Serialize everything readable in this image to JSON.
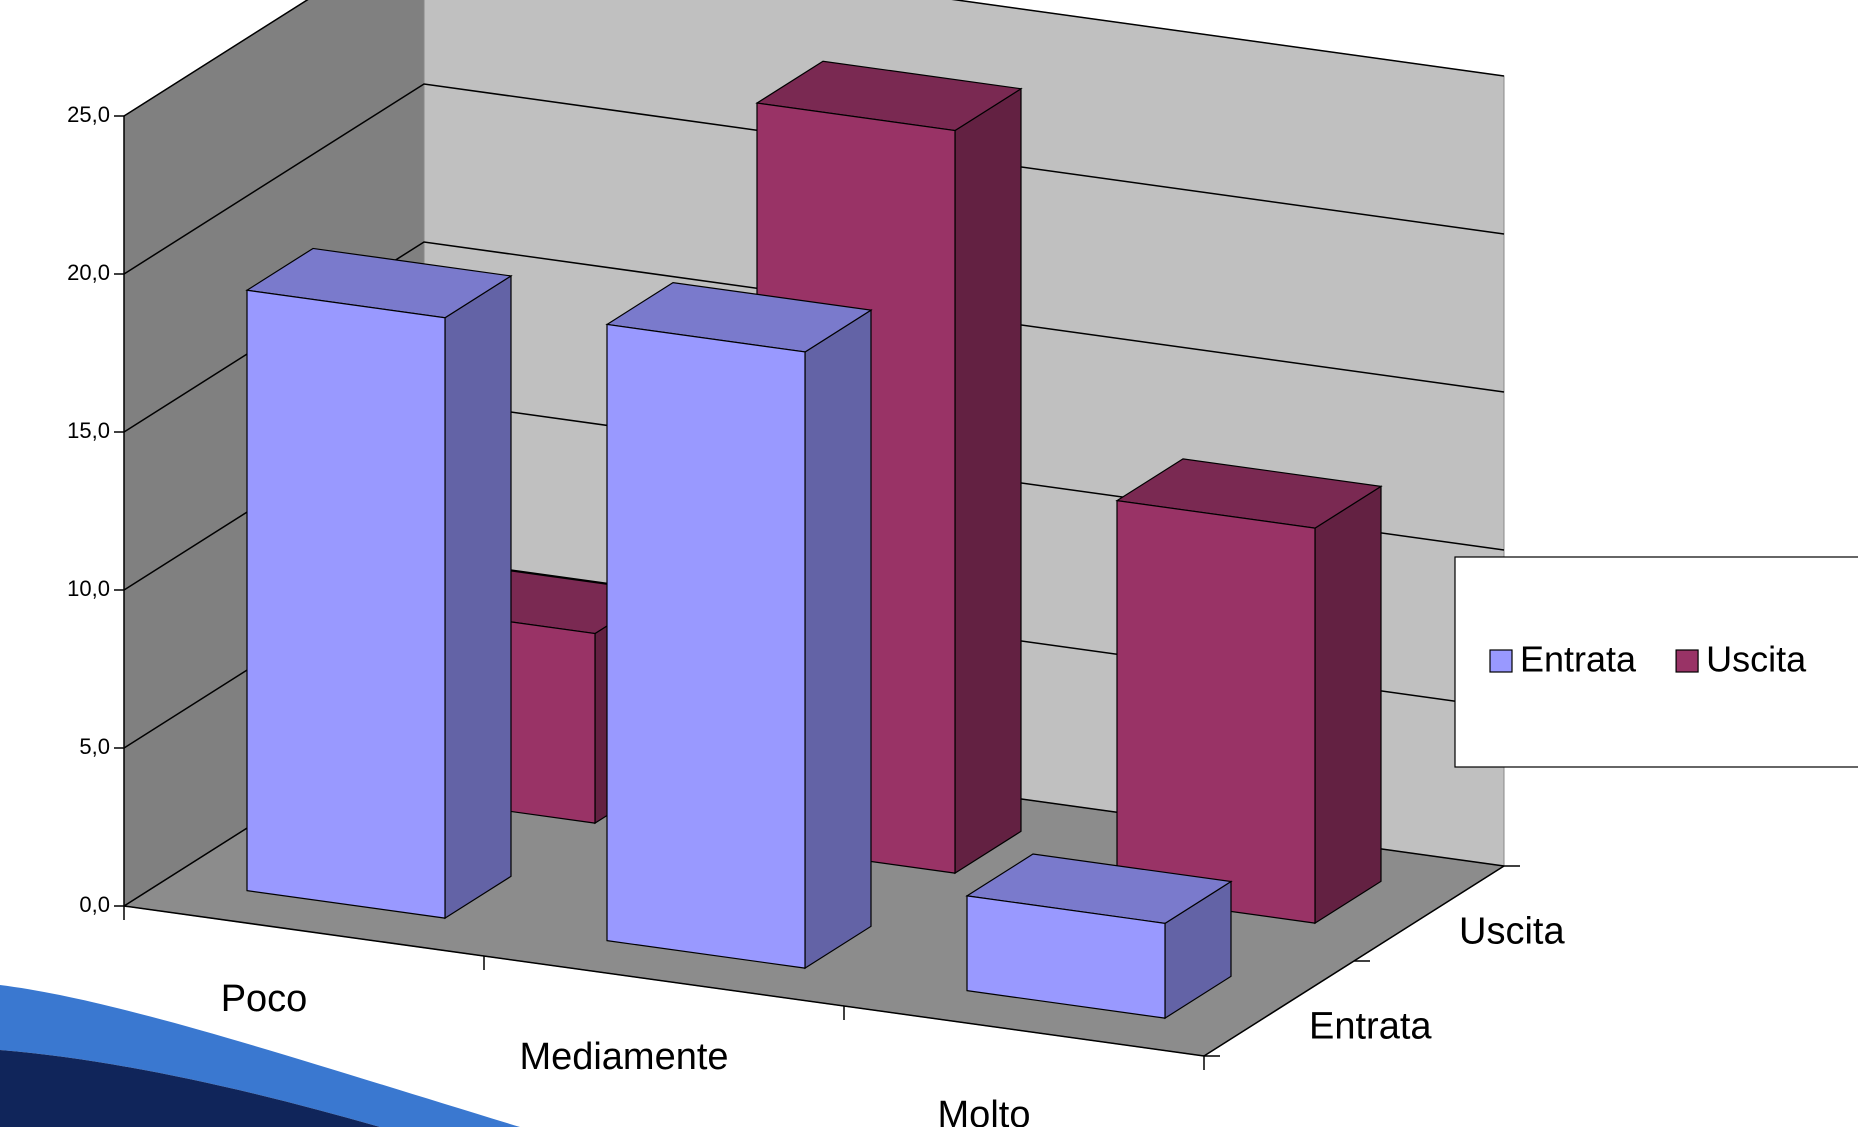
{
  "chart_data": {
    "type": "bar3d",
    "categories": [
      "Poco",
      "Mediamente",
      "Molto"
    ],
    "series": [
      {
        "name": "Entrata",
        "color": "#9999ff",
        "values": [
          19.0,
          19.5,
          3.0
        ]
      },
      {
        "name": "Uscita",
        "color": "#993366",
        "values": [
          6.0,
          23.5,
          12.5
        ]
      }
    ],
    "ylim": [
      0,
      25
    ],
    "yticks": [
      {
        "value": 0,
        "label": "0,0"
      },
      {
        "value": 5,
        "label": "5,0"
      },
      {
        "value": 10,
        "label": "10,0"
      },
      {
        "value": 15,
        "label": "15,0"
      },
      {
        "value": 20,
        "label": "20,0"
      },
      {
        "value": 25,
        "label": "25,0"
      }
    ],
    "grid": true
  }
}
